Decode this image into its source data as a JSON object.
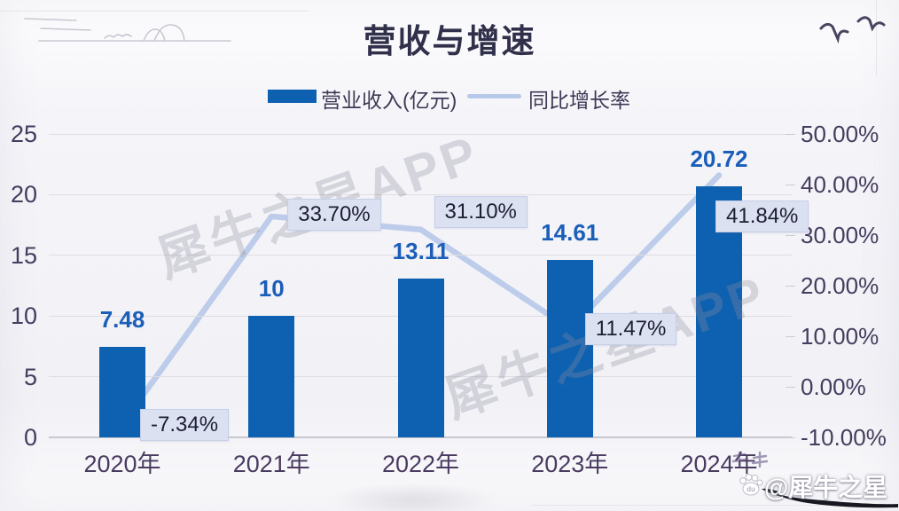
{
  "page": {
    "title": "营收与增速"
  },
  "legend": {
    "bar_label": "营业收入(亿元)",
    "line_label": "同比增长率"
  },
  "chart_data": {
    "type": "combo",
    "title": "营收与增速",
    "categories": [
      "2020年",
      "2021年",
      "2022年",
      "2023年",
      "2024年"
    ],
    "series": [
      {
        "name": "营业收入(亿元)",
        "chart": "bar",
        "axis": "left",
        "unit": "亿元",
        "values": [
          7.48,
          10,
          13.11,
          14.61,
          20.72
        ],
        "value_labels": [
          "7.48",
          "10",
          "13.11",
          "14.61",
          "20.72"
        ]
      },
      {
        "name": "同比增长率",
        "chart": "line",
        "axis": "right",
        "unit": "%",
        "values": [
          -7.34,
          33.7,
          31.1,
          11.47,
          41.84
        ],
        "value_labels": [
          "-7.34%",
          "33.70%",
          "31.10%",
          "11.47%",
          "41.84%"
        ]
      }
    ],
    "left_axis": {
      "min": 0,
      "max": 25,
      "tick_values": [
        25,
        20,
        15,
        10,
        5,
        0
      ],
      "tick_labels": [
        "25",
        "20",
        "15",
        "10",
        "5",
        "0"
      ]
    },
    "right_axis": {
      "min": -10,
      "max": 50,
      "tick_values": [
        50,
        40,
        30,
        20,
        10,
        0,
        -10
      ],
      "tick_labels": [
        "50.00%",
        "40.00%",
        "30.00%",
        "20.00%",
        "10.00%",
        "0.00%",
        "-10.00%"
      ]
    },
    "grid": true,
    "legend_position": "top"
  },
  "colors": {
    "bar": "#0e61b0",
    "line": "#b7c9e8",
    "value_label": "#1b5eb8",
    "callout_bg": "#dbe1f1",
    "callout_border": "#c6cfe9",
    "callout_text": "#1d1d33",
    "axis_text": "#453c5e",
    "title_text": "#30304a",
    "grid": "#dddde3"
  },
  "watermark": {
    "text": "犀牛之星APP"
  },
  "badge": {
    "handle": "@犀牛之星",
    "icon": "paw-icon"
  }
}
